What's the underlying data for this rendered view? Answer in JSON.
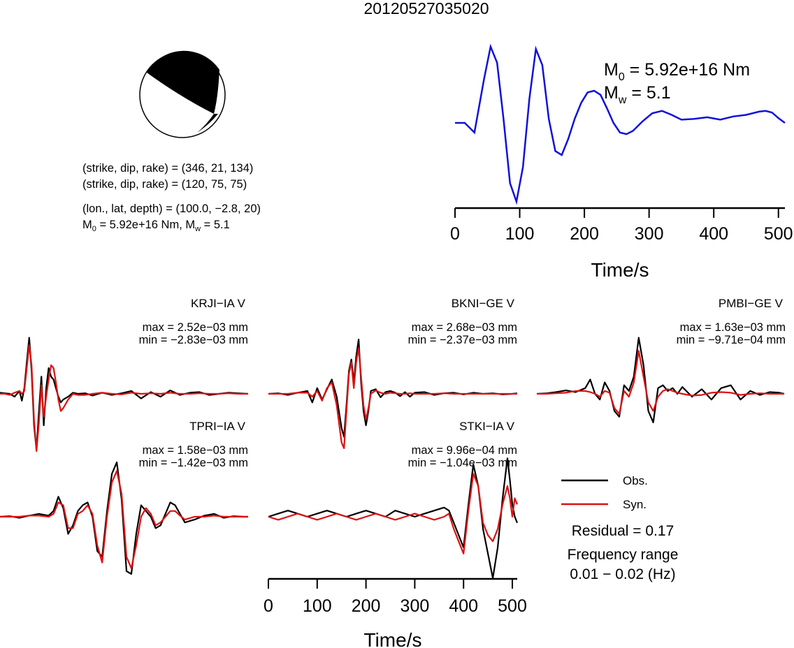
{
  "title": "20120527035020",
  "mechanism": {
    "plane1": "(strike, dip, rake) = (346, 21, 134)",
    "plane2": "(strike, dip, rake) = (120, 75, 75)",
    "location": "(lon., lat, depth) = (100.0, −2.8, 20)",
    "moment_prefix": "M",
    "moment_value": " = 5.92e+16 Nm, M",
    "mw_value": " = 5.1"
  },
  "stf": {
    "m0_value": " = 5.92e+16 Nm",
    "mw_value": " = 5.1",
    "xlabel": "Time/s",
    "color": "#1010dd"
  },
  "legend": {
    "obs": "Obs.",
    "syn": "Syn.",
    "residual": "Residual = 0.17",
    "freq_title": "Frequency range",
    "freq_value": "0.01 − 0.02 (Hz)"
  },
  "chart_data": [
    {
      "type": "line",
      "title": "",
      "xlabel": "Time/s",
      "xlim": [
        0,
        510
      ],
      "xticks": [
        0,
        100,
        200,
        300,
        400,
        500
      ],
      "series": [
        {
          "x": [
            0,
            15,
            30,
            45,
            55,
            65,
            75,
            85,
            95,
            105,
            115,
            125,
            135,
            145,
            155,
            165,
            175,
            185,
            195,
            205,
            215,
            225,
            235,
            245,
            255,
            265,
            275,
            290,
            305,
            320,
            335,
            350,
            370,
            390,
            410,
            430,
            450,
            470,
            480,
            490,
            500,
            510
          ],
          "y": [
            0.0,
            0.0,
            -0.12,
            0.55,
            0.95,
            0.75,
            0.05,
            -0.75,
            -0.98,
            -0.55,
            0.3,
            0.92,
            0.72,
            0.05,
            -0.35,
            -0.4,
            -0.2,
            0.05,
            0.25,
            0.38,
            0.4,
            0.35,
            0.18,
            0.0,
            -0.12,
            -0.14,
            -0.1,
            0.02,
            0.12,
            0.15,
            0.1,
            0.04,
            0.05,
            0.07,
            0.04,
            0.08,
            0.1,
            0.14,
            0.15,
            0.13,
            0.06,
            0.0
          ]
        }
      ]
    },
    {
      "type": "line",
      "station": "KRJI−IA V",
      "max": "max = 2.52e−03 mm",
      "min": "min = −2.83e−03 mm",
      "series": [
        {
          "name": "Obs.",
          "color": "#000000",
          "x": [
            0,
            10,
            20,
            30,
            40,
            45,
            50,
            55,
            60,
            65,
            70,
            75,
            80,
            85,
            90,
            95,
            100,
            105,
            110,
            115,
            120,
            125,
            130,
            140,
            150,
            160,
            175,
            190,
            210,
            230,
            250,
            270,
            290,
            310,
            330,
            350,
            370,
            390,
            410,
            430,
            450,
            470,
            490,
            510
          ],
          "y": [
            0.02,
            0.01,
            0.0,
            -0.05,
            0.05,
            -0.12,
            0.1,
            0.55,
            0.98,
            0.4,
            -0.55,
            -0.98,
            -0.3,
            0.3,
            -0.55,
            0.1,
            0.45,
            0.3,
            0.25,
            0.1,
            -0.05,
            -0.15,
            -0.1,
            -0.05,
            0.02,
            0.0,
            0.01,
            -0.03,
            0.02,
            -0.02,
            0.01,
            0.05,
            -0.08,
            0.03,
            -0.05,
            0.06,
            -0.02,
            0.02,
            0.03,
            -0.02,
            0.0,
            0.02,
            0.01,
            0.0
          ]
        },
        {
          "name": "Syn.",
          "color": "#dd1010",
          "x": [
            0,
            10,
            20,
            30,
            40,
            45,
            50,
            55,
            60,
            65,
            70,
            75,
            80,
            85,
            90,
            95,
            100,
            105,
            110,
            115,
            120,
            125,
            130,
            140,
            150,
            160,
            175,
            190,
            210,
            230,
            250,
            270,
            290,
            310,
            330,
            350,
            370,
            390,
            410,
            430,
            450,
            470,
            490,
            510
          ],
          "y": [
            0.0,
            0.0,
            -0.02,
            0.02,
            0.05,
            0.0,
            0.05,
            0.45,
            0.85,
            0.5,
            -0.45,
            -1.0,
            -0.5,
            0.15,
            -0.4,
            -0.05,
            0.25,
            0.5,
            0.45,
            0.2,
            -0.1,
            -0.3,
            -0.25,
            -0.1,
            0.0,
            -0.02,
            -0.02,
            0.0,
            0.02,
            0.0,
            -0.01,
            0.02,
            0.0,
            0.01,
            0.0,
            0.02,
            0.0,
            0.0,
            0.01,
            0.0,
            0.0,
            0.01,
            0.0,
            0.0
          ]
        }
      ]
    },
    {
      "type": "line",
      "station": "BKNI−GE V",
      "max": "max = 2.68e−03 mm",
      "min": "min = −2.37e−03 mm",
      "series": [
        {
          "name": "Obs.",
          "color": "#000000",
          "x": [
            0,
            20,
            40,
            60,
            80,
            90,
            100,
            110,
            120,
            130,
            140,
            150,
            155,
            160,
            165,
            170,
            175,
            180,
            185,
            190,
            195,
            200,
            205,
            210,
            220,
            230,
            240,
            250,
            260,
            270,
            280,
            290,
            300,
            320,
            340,
            360,
            380,
            400,
            420,
            440,
            460,
            480,
            500,
            510
          ],
          "y": [
            0.0,
            0.01,
            -0.02,
            0.02,
            0.05,
            -0.15,
            0.1,
            -0.1,
            0.08,
            0.25,
            -0.05,
            -0.6,
            -0.75,
            -0.2,
            0.4,
            0.6,
            0.2,
            0.65,
            0.95,
            0.2,
            -0.3,
            -0.55,
            -0.3,
            0.05,
            0.08,
            -0.06,
            0.03,
            0.05,
            0.02,
            -0.04,
            0.03,
            -0.05,
            0.02,
            0.03,
            -0.02,
            0.01,
            0.02,
            -0.01,
            0.02,
            0.0,
            0.01,
            -0.01,
            0.0,
            0.01
          ]
        },
        {
          "name": "Syn.",
          "color": "#dd1010",
          "x": [
            0,
            20,
            40,
            60,
            80,
            90,
            100,
            110,
            120,
            130,
            140,
            150,
            155,
            160,
            165,
            170,
            175,
            180,
            185,
            190,
            195,
            200,
            205,
            210,
            220,
            230,
            240,
            250,
            260,
            270,
            280,
            290,
            300,
            320,
            340,
            360,
            380,
            400,
            420,
            440,
            460,
            480,
            500,
            510
          ],
          "y": [
            0.0,
            0.0,
            0.0,
            0.02,
            0.02,
            -0.05,
            0.05,
            -0.12,
            0.1,
            0.2,
            -0.2,
            -0.85,
            -0.95,
            -0.3,
            0.35,
            0.55,
            0.1,
            0.55,
            0.8,
            0.3,
            -0.2,
            -0.45,
            -0.25,
            0.0,
            0.06,
            0.02,
            0.0,
            0.02,
            0.01,
            0.0,
            0.0,
            0.01,
            0.0,
            0.0,
            0.0,
            0.01,
            0.0,
            0.0,
            0.0,
            0.0,
            0.0,
            0.0,
            0.0,
            0.0
          ]
        }
      ]
    },
    {
      "type": "line",
      "station": "PMBI−GE V",
      "max": "max = 1.63e−03 mm",
      "min": "min = −9.71e−04 mm",
      "series": [
        {
          "name": "Obs.",
          "color": "#000000",
          "x": [
            0,
            20,
            40,
            60,
            80,
            100,
            110,
            120,
            130,
            140,
            150,
            160,
            170,
            180,
            190,
            200,
            210,
            220,
            230,
            240,
            250,
            260,
            270,
            280,
            290,
            300,
            320,
            340,
            360,
            380,
            400,
            420,
            440,
            460,
            480,
            500,
            510
          ],
          "y": [
            0.0,
            0.01,
            0.03,
            0.06,
            0.03,
            0.1,
            0.25,
            0.0,
            -0.1,
            0.2,
            0.05,
            -0.3,
            -0.4,
            0.15,
            0.05,
            0.3,
            0.98,
            0.5,
            -0.3,
            -0.5,
            0.1,
            0.15,
            0.05,
            0.1,
            0.0,
            0.12,
            -0.05,
            0.08,
            -0.1,
            0.1,
            0.15,
            -0.1,
            0.05,
            -0.02,
            0.03,
            0.02,
            0.0
          ]
        },
        {
          "name": "Syn.",
          "color": "#dd1010",
          "x": [
            0,
            20,
            40,
            60,
            80,
            100,
            110,
            120,
            130,
            140,
            150,
            160,
            170,
            180,
            190,
            200,
            210,
            220,
            230,
            240,
            250,
            260,
            270,
            280,
            290,
            300,
            320,
            340,
            360,
            380,
            400,
            420,
            440,
            460,
            480,
            500,
            510
          ],
          "y": [
            0.0,
            0.0,
            0.01,
            0.02,
            0.05,
            0.05,
            0.03,
            0.0,
            -0.05,
            0.05,
            0.02,
            -0.25,
            -0.35,
            0.05,
            -0.05,
            0.2,
            0.75,
            0.3,
            -0.15,
            -0.3,
            -0.05,
            0.05,
            0.08,
            0.05,
            0.02,
            0.0,
            -0.03,
            -0.02,
            0.02,
            0.03,
            0.02,
            -0.02,
            0.0,
            0.01,
            0.0,
            0.0,
            0.0
          ]
        }
      ]
    },
    {
      "type": "line",
      "station": "TPRI−IA V",
      "max": "max = 1.58e−03 mm",
      "min": "min = −1.42e−03 mm",
      "series": [
        {
          "name": "Obs.",
          "color": "#000000",
          "x": [
            0,
            20,
            40,
            60,
            80,
            100,
            110,
            120,
            130,
            140,
            150,
            160,
            170,
            180,
            190,
            200,
            210,
            220,
            230,
            240,
            250,
            260,
            270,
            280,
            290,
            300,
            310,
            320,
            330,
            340,
            350,
            360,
            370,
            380,
            400,
            420,
            440,
            460,
            480,
            500,
            510
          ],
          "y": [
            0.0,
            0.01,
            -0.02,
            0.02,
            0.05,
            0.02,
            0.1,
            0.35,
            0.15,
            -0.3,
            -0.15,
            0.1,
            0.2,
            0.25,
            0.0,
            -0.6,
            -0.7,
            0.1,
            0.75,
            0.95,
            0.3,
            -0.95,
            -1.0,
            -0.3,
            0.2,
            0.1,
            0.0,
            -0.2,
            -0.15,
            0.05,
            0.25,
            0.2,
            0.05,
            -0.1,
            -0.05,
            0.02,
            0.05,
            -0.02,
            0.01,
            0.0,
            0.0
          ]
        },
        {
          "name": "Syn.",
          "color": "#dd1010",
          "x": [
            0,
            20,
            40,
            60,
            80,
            100,
            110,
            120,
            130,
            140,
            150,
            160,
            170,
            180,
            190,
            200,
            210,
            220,
            230,
            240,
            250,
            260,
            270,
            280,
            290,
            300,
            310,
            320,
            330,
            340,
            350,
            360,
            370,
            380,
            400,
            420,
            440,
            460,
            480,
            500,
            510
          ],
          "y": [
            0.0,
            0.0,
            0.0,
            0.02,
            0.02,
            0.0,
            0.05,
            0.25,
            0.2,
            -0.2,
            -0.2,
            0.05,
            0.1,
            0.2,
            0.05,
            -0.5,
            -0.8,
            0.0,
            0.6,
            0.8,
            0.4,
            -0.7,
            -0.9,
            -0.5,
            0.0,
            0.15,
            0.05,
            -0.15,
            -0.1,
            0.0,
            0.1,
            0.1,
            0.02,
            -0.05,
            0.0,
            0.0,
            0.02,
            0.0,
            0.0,
            0.0,
            0.0
          ]
        }
      ]
    },
    {
      "type": "line",
      "station": "STKI−IA V",
      "max": "max = 9.96e−04 mm",
      "min": "min = −1.04e−03 mm",
      "xlabel": "Time/s",
      "xlim": [
        0,
        510
      ],
      "xticks": [
        0,
        100,
        200,
        300,
        400,
        500
      ],
      "series": [
        {
          "name": "Obs.",
          "color": "#000000",
          "x": [
            0,
            20,
            40,
            60,
            80,
            100,
            120,
            140,
            160,
            180,
            200,
            220,
            240,
            260,
            280,
            300,
            320,
            340,
            360,
            370,
            380,
            390,
            400,
            410,
            420,
            430,
            440,
            450,
            460,
            470,
            480,
            490,
            495,
            500,
            505,
            510
          ],
          "y": [
            0.0,
            0.05,
            0.1,
            0.05,
            0.0,
            0.05,
            0.1,
            0.05,
            0.0,
            0.05,
            0.1,
            0.05,
            0.0,
            0.1,
            0.05,
            0.0,
            0.05,
            0.1,
            0.15,
            0.1,
            -0.1,
            -0.3,
            -0.5,
            0.2,
            0.85,
            0.5,
            -0.2,
            -0.6,
            -1.0,
            -0.5,
            0.3,
            0.95,
            0.6,
            0.2,
            0.0,
            -0.1
          ]
        },
        {
          "name": "Syn.",
          "color": "#dd1010",
          "x": [
            0,
            20,
            40,
            60,
            80,
            100,
            120,
            140,
            160,
            180,
            200,
            220,
            240,
            260,
            280,
            300,
            320,
            340,
            360,
            370,
            380,
            390,
            400,
            410,
            420,
            430,
            440,
            450,
            460,
            470,
            480,
            490,
            495,
            500,
            505,
            510
          ],
          "y": [
            0.0,
            -0.05,
            0.0,
            0.05,
            0.0,
            -0.05,
            0.0,
            0.05,
            0.0,
            -0.05,
            0.0,
            0.05,
            0.0,
            -0.05,
            0.0,
            0.05,
            0.0,
            -0.05,
            0.0,
            0.05,
            -0.2,
            -0.4,
            -0.6,
            0.1,
            0.7,
            0.5,
            -0.1,
            -0.3,
            -0.4,
            -0.2,
            0.2,
            0.5,
            0.3,
            0.0,
            0.3,
            0.2
          ]
        }
      ]
    }
  ]
}
